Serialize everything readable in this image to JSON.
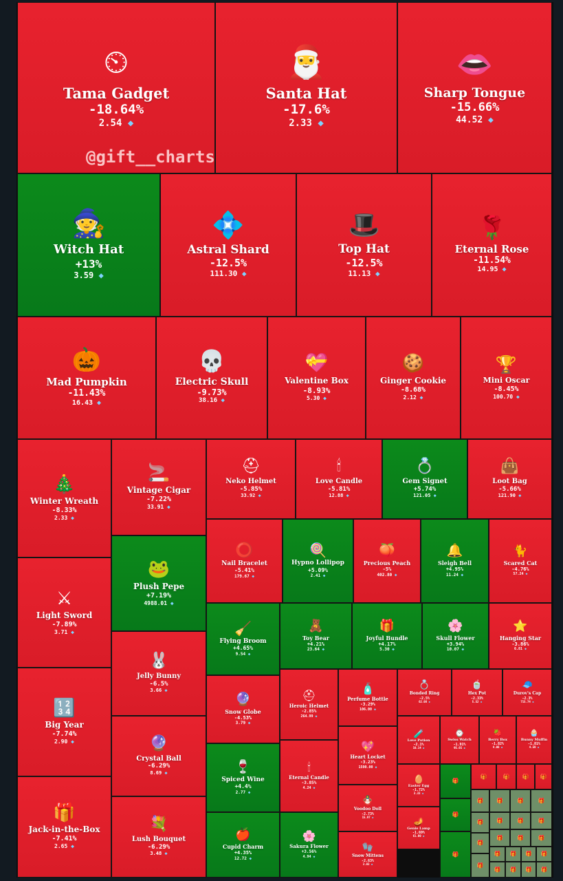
{
  "watermark": "@gift__charts",
  "colors": {
    "negative": "#e0202c",
    "positive": "#0a841a",
    "flat": "#6f8f68",
    "border": "#141414",
    "background": "#121a21"
  },
  "chart_data": {
    "type": "treemap",
    "price_unit_icon": "diamond-icon",
    "items": [
      {
        "name": "Tama Gadget",
        "change": "-18.64%",
        "price": "2.54",
        "icon": "tamagotchi-icon"
      },
      {
        "name": "Santa Hat",
        "change": "-17.6%",
        "price": "2.33",
        "icon": "santa-hat-icon"
      },
      {
        "name": "Sharp Tongue",
        "change": "-15.66%",
        "price": "44.52",
        "icon": "lips-icon"
      },
      {
        "name": "Witch Hat",
        "change": "+13%",
        "price": "3.59",
        "icon": "witch-hat-icon"
      },
      {
        "name": "Astral Shard",
        "change": "-12.5%",
        "price": "111.30",
        "icon": "crystal-icon"
      },
      {
        "name": "Top Hat",
        "change": "-12.5%",
        "price": "11.13",
        "icon": "top-hat-icon"
      },
      {
        "name": "Eternal Rose",
        "change": "-11.54%",
        "price": "14.95",
        "icon": "rose-icon"
      },
      {
        "name": "Mad Pumpkin",
        "change": "-11.43%",
        "price": "16.43",
        "icon": "pumpkin-icon"
      },
      {
        "name": "Electric Skull",
        "change": "-9.73%",
        "price": "38.16",
        "icon": "skull-icon"
      },
      {
        "name": "Valentine Box",
        "change": "-8.93%",
        "price": "5.30",
        "icon": "heart-box-icon"
      },
      {
        "name": "Ginger Cookie",
        "change": "-8.68%",
        "price": "2.12",
        "icon": "gingerbread-icon"
      },
      {
        "name": "Mini Oscar",
        "change": "-8.45%",
        "price": "100.70",
        "icon": "trophy-icon"
      },
      {
        "name": "Winter Wreath",
        "change": "-8.33%",
        "price": "2.33",
        "icon": "wreath-icon"
      },
      {
        "name": "Vintage Cigar",
        "change": "-7.22%",
        "price": "33.91",
        "icon": "cigar-icon"
      },
      {
        "name": "Neko Helmet",
        "change": "-5.85%",
        "price": "33.92",
        "icon": "helmet-icon"
      },
      {
        "name": "Love Candle",
        "change": "-5.81%",
        "price": "12.88",
        "icon": "candle-icon"
      },
      {
        "name": "Gem Signet",
        "change": "+5.74%",
        "price": "121.05",
        "icon": "ring-icon"
      },
      {
        "name": "Loot Bag",
        "change": "-5.66%",
        "price": "121.90",
        "icon": "bag-icon"
      },
      {
        "name": "Light Sword",
        "change": "-7.89%",
        "price": "3.71",
        "icon": "sword-icon"
      },
      {
        "name": "Plush Pepe",
        "change": "+7.19%",
        "price": "4988.01",
        "icon": "frog-icon"
      },
      {
        "name": "Nail Bracelet",
        "change": "-5.41%",
        "price": "179.67",
        "icon": "bracelet-icon"
      },
      {
        "name": "Hypno Lollipop",
        "change": "+5.09%",
        "price": "2.41",
        "icon": "lollipop-icon"
      },
      {
        "name": "Precious Peach",
        "change": "-5%",
        "price": "402.80",
        "icon": "peach-icon"
      },
      {
        "name": "Sleigh Bell",
        "change": "+4.95%",
        "price": "11.24",
        "icon": "bell-icon"
      },
      {
        "name": "Scared Cat",
        "change": "-4.76%",
        "price": "57.24",
        "icon": "cat-icon"
      },
      {
        "name": "Flying Broom",
        "change": "+4.65%",
        "price": "9.54",
        "icon": "broom-icon"
      },
      {
        "name": "Toy Bear",
        "change": "+4.21%",
        "price": "23.64",
        "icon": "teddy-bear-icon"
      },
      {
        "name": "Joyful Bundle",
        "change": "+4.17%",
        "price": "5.30",
        "icon": "bundle-icon"
      },
      {
        "name": "Skull Flower",
        "change": "+3.94%",
        "price": "10.07",
        "icon": "flower-icon"
      },
      {
        "name": "Hanging Star",
        "change": "-3.86%",
        "price": "6.81",
        "icon": "star-icon"
      },
      {
        "name": "Jelly Bunny",
        "change": "-6.5%",
        "price": "3.66",
        "icon": "bunny-icon"
      },
      {
        "name": "Snow Globe",
        "change": "-4.53%",
        "price": "3.79",
        "icon": "snow-globe-icon"
      },
      {
        "name": "Heroic Helmet",
        "change": "-2.85%",
        "price": "264.99",
        "icon": "spartan-helmet-icon"
      },
      {
        "name": "Perfume Bottle",
        "change": "-3.29%",
        "price": "106.00",
        "icon": "perfume-icon"
      },
      {
        "name": "Bonded Ring",
        "change": "-2.5%",
        "price": "62.08",
        "icon": "ring-icon"
      },
      {
        "name": "Hex Pot",
        "change": "-2.33%",
        "price": "5.52",
        "icon": "pot-icon"
      },
      {
        "name": "Durov's Cap",
        "change": "-2.3%",
        "price": "715.74",
        "icon": "cap-icon"
      },
      {
        "name": "Big Year",
        "change": "-7.74%",
        "price": "2.90",
        "icon": "numbers-icon"
      },
      {
        "name": "Crystal Ball",
        "change": "-6.29%",
        "price": "8.69",
        "icon": "crystal-ball-icon"
      },
      {
        "name": "Spiced Wine",
        "change": "+4.4%",
        "price": "2.77",
        "icon": "wine-icon"
      },
      {
        "name": "Eternal Candle",
        "change": "-3.85%",
        "price": "4.24",
        "icon": "candle-icon"
      },
      {
        "name": "Heart Locket",
        "change": "-3.23%",
        "price": "1590.00",
        "icon": "locket-icon"
      },
      {
        "name": "Love Potion",
        "change": "-2.1%",
        "price": "10.14",
        "icon": "potion-icon"
      },
      {
        "name": "Swiss Watch",
        "change": "-1.91%",
        "price": "95.65",
        "icon": "watch-icon"
      },
      {
        "name": "Berry Box",
        "change": "-1.82%",
        "price": "4.06",
        "icon": "berry-icon"
      },
      {
        "name": "Bunny Muffin",
        "change": "-1.81%",
        "price": "4.59",
        "icon": "muffin-icon"
      },
      {
        "name": "Easter Egg",
        "change": "-1.72%",
        "price": "3.33",
        "icon": "egg-icon"
      },
      {
        "name": "Voodoo Doll",
        "change": "-2.73%",
        "price": "15.97",
        "icon": "doll-icon"
      },
      {
        "name": "Genie Lamp",
        "change": "-1.69%",
        "price": "61.00",
        "icon": "lamp-icon"
      },
      {
        "name": "Jack-in-the-Box",
        "change": "-7.41%",
        "price": "2.65",
        "icon": "jack-box-icon"
      },
      {
        "name": "Lush Bouquet",
        "change": "-6.29%",
        "price": "3.48",
        "icon": "bouquet-icon"
      },
      {
        "name": "Cupid Charm",
        "change": "+4.35%",
        "price": "12.72",
        "icon": "apple-icon"
      },
      {
        "name": "Sakura Flower",
        "change": "+3.56%",
        "price": "4.94",
        "icon": "sakura-icon"
      },
      {
        "name": "Snow Mittens",
        "change": "-2.63%",
        "price": "3.03",
        "icon": "mittens-icon"
      }
    ]
  }
}
